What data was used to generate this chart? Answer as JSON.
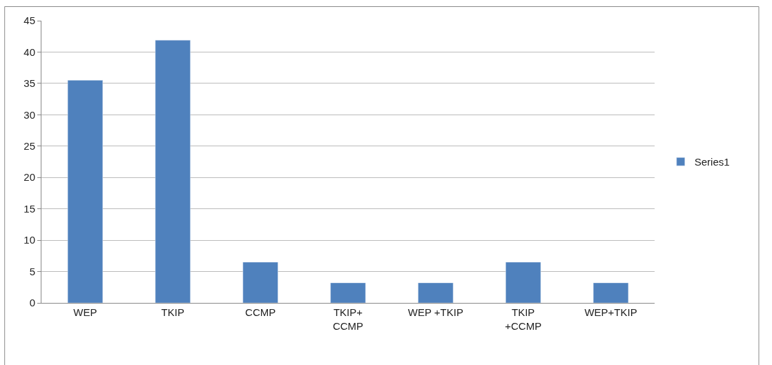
{
  "chart_data": {
    "type": "bar",
    "categories": [
      "WEP",
      "TKIP",
      "CCMP",
      "TKIP+\nCCMP",
      "WEP +TKIP",
      "TKIP\n+CCMP",
      "WEP+TKIP"
    ],
    "series": [
      {
        "name": "Series1",
        "color": "#4f81bd",
        "values": [
          35.5,
          41.9,
          6.5,
          3.2,
          3.2,
          6.5,
          3.2
        ]
      }
    ],
    "ylim": [
      0,
      45
    ],
    "yticks": [
      0,
      5,
      10,
      15,
      20,
      25,
      30,
      35,
      40,
      45
    ],
    "grid": "y",
    "legend": "right"
  }
}
